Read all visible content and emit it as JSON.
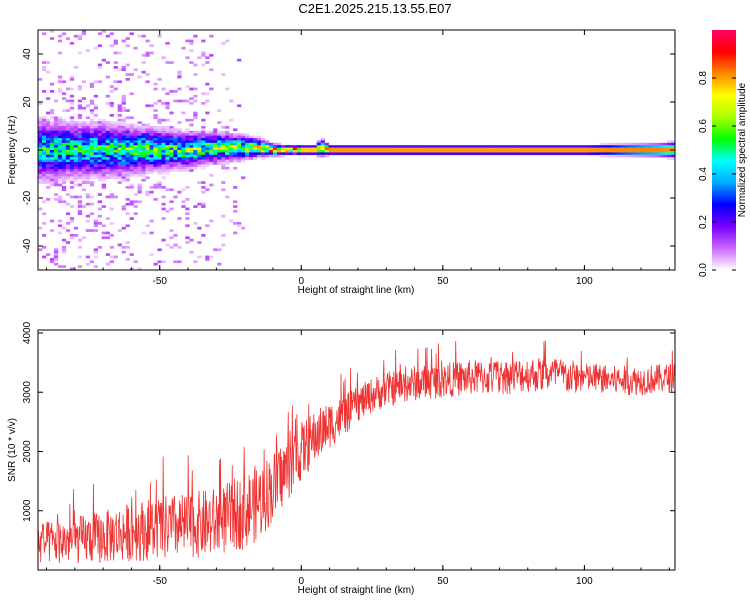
{
  "title": "C2E1.2025.215.13.55.E07",
  "chart_data": [
    {
      "type": "heatmap",
      "title": "",
      "xlabel": "Height of straight line (km)",
      "ylabel": "Frequency (Hz)",
      "xlim": [
        -93,
        132
      ],
      "ylim": [
        -50,
        50
      ],
      "x_ticks": [
        -50,
        0,
        50,
        100
      ],
      "y_ticks": [
        -40,
        -20,
        0,
        20,
        40
      ],
      "colorbar": {
        "label": "Normalized spectral amplitude",
        "range": [
          0,
          1
        ],
        "ticks": [
          0.0,
          0.2,
          0.4,
          0.6,
          0.8
        ],
        "colormap": [
          "#ffffff",
          "#cc66ff",
          "#7700ff",
          "#0000ff",
          "#00aaff",
          "#00ffff",
          "#00ff00",
          "#aaff00",
          "#ffff00",
          "#ff8800",
          "#ff0000",
          "#ff0066"
        ]
      },
      "band_profile": {
        "x": [
          -90,
          -80,
          -70,
          -60,
          -50,
          -40,
          -30,
          -20,
          -15,
          -10,
          -5,
          0,
          5,
          7,
          10,
          20,
          50,
          100,
          125,
          132
        ],
        "center_freq_hz": [
          0,
          0,
          0,
          0,
          0,
          0,
          1,
          1,
          1,
          0,
          0,
          0,
          0,
          1,
          0,
          0,
          0,
          0,
          0,
          0
        ],
        "half_width_hz": [
          10,
          9,
          9,
          8,
          7,
          6,
          5,
          4,
          3,
          2,
          1.5,
          1.5,
          1.5,
          3,
          1.5,
          1.5,
          1.5,
          1.5,
          2,
          2.5
        ],
        "peak_amplitude": [
          0.45,
          0.45,
          0.45,
          0.5,
          0.5,
          0.5,
          0.55,
          0.6,
          0.7,
          0.8,
          0.85,
          0.9,
          0.9,
          0.7,
          0.95,
          0.95,
          0.95,
          0.95,
          0.9,
          0.85
        ]
      }
    },
    {
      "type": "line",
      "title": "",
      "xlabel": "Height of straight line (km)",
      "ylabel": "SNR (10 * v/v)",
      "xlim": [
        -93,
        132
      ],
      "ylim": [
        0,
        4050
      ],
      "x_ticks": [
        -50,
        0,
        50,
        100
      ],
      "y_ticks": [
        1000,
        2000,
        3000,
        4000
      ],
      "series": [
        {
          "color": "#ee3333",
          "x": [
            -93,
            -80,
            -70,
            -60,
            -50,
            -40,
            -30,
            -25,
            -20,
            -15,
            -10,
            -5,
            0,
            5,
            10,
            15,
            20,
            25,
            30,
            40,
            50,
            60,
            70,
            80,
            90,
            95,
            100,
            110,
            120,
            132
          ],
          "y": [
            450,
            500,
            550,
            650,
            700,
            750,
            800,
            900,
            1000,
            1150,
            1400,
            1700,
            2000,
            2250,
            2450,
            2600,
            2800,
            2950,
            3050,
            3150,
            3200,
            3250,
            3250,
            3300,
            3300,
            3250,
            3250,
            3200,
            3200,
            3250
          ],
          "noise_amplitude": [
            350,
            400,
            450,
            500,
            550,
            550,
            600,
            600,
            650,
            650,
            600,
            550,
            500,
            450,
            400,
            350,
            300,
            300,
            300,
            300,
            300,
            300,
            300,
            300,
            300,
            300,
            250,
            250,
            250,
            250
          ]
        }
      ]
    }
  ]
}
